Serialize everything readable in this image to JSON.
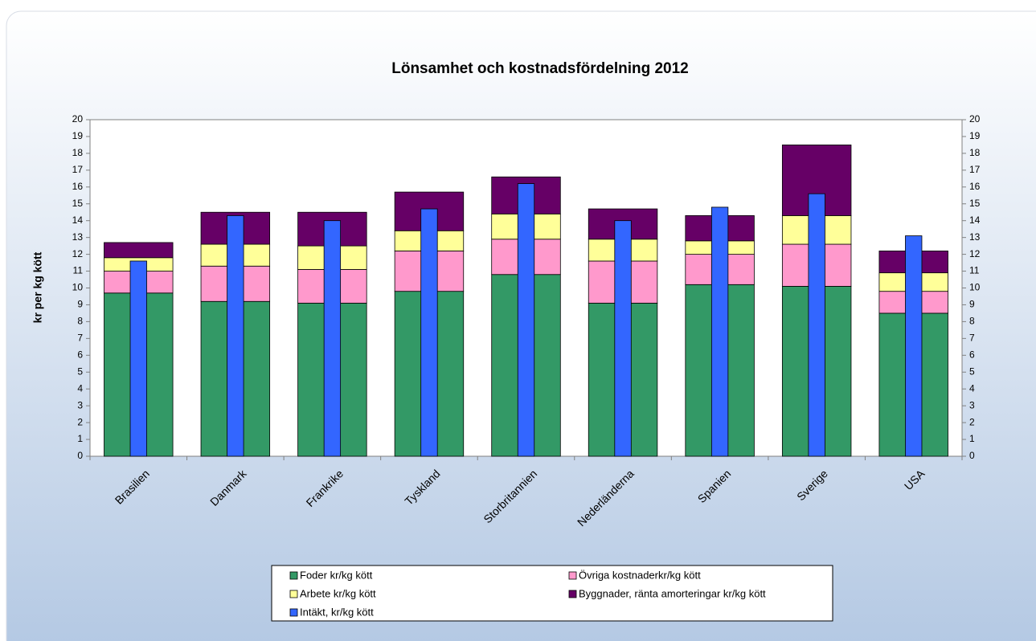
{
  "chart_data": {
    "type": "bar",
    "stacked": true,
    "title": "Lönsamhet och kostnadsfördelning 2012",
    "y_label": "kr per kg kött",
    "categories": [
      "Brasilien",
      "Danmark",
      "Frankrike",
      "Tyskland",
      "Storbritannien",
      "Nederländerna",
      "Spanien",
      "Sverige",
      "USA"
    ],
    "series": [
      {
        "name": "Foder kr/kg kött",
        "color": "#339966",
        "values": [
          9.7,
          9.2,
          9.1,
          9.8,
          10.8,
          9.1,
          10.2,
          10.1,
          8.5
        ]
      },
      {
        "name": "Övriga kostnaderkr/kg kött",
        "color": "#ff99cc",
        "values": [
          1.3,
          2.1,
          2.0,
          2.4,
          2.1,
          2.5,
          1.8,
          2.5,
          1.3
        ]
      },
      {
        "name": "Arbete kr/kg kött",
        "color": "#ffff99",
        "values": [
          0.8,
          1.3,
          1.4,
          1.2,
          1.5,
          1.3,
          0.8,
          1.7,
          1.1
        ]
      },
      {
        "name": "Byggnader, ränta amorteringar kr/kg kött",
        "color": "#660066",
        "values": [
          0.9,
          1.9,
          2.0,
          2.3,
          2.2,
          1.8,
          1.5,
          4.2,
          1.3
        ]
      },
      {
        "name": "Intäkt, kr/kg kött",
        "color": "#3366ff",
        "overlay": true,
        "values": [
          11.6,
          14.3,
          14.0,
          14.7,
          16.2,
          14.0,
          14.8,
          15.6,
          13.1
        ]
      }
    ],
    "ylim": [
      0,
      20
    ],
    "yticks": [
      0,
      1,
      2,
      3,
      4,
      5,
      6,
      7,
      8,
      9,
      10,
      11,
      12,
      13,
      14,
      15,
      16,
      17,
      18,
      19,
      20
    ],
    "y2lim": [
      0,
      20
    ],
    "y2ticks": [
      0,
      1,
      2,
      3,
      4,
      5,
      6,
      7,
      8,
      9,
      10,
      11,
      12,
      13,
      14,
      15,
      16,
      17,
      18,
      19,
      20
    ],
    "grid": false,
    "legend": "bottom"
  }
}
